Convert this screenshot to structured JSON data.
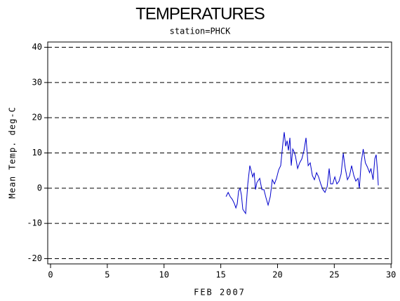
{
  "chart_data": {
    "type": "line",
    "title": "TEMPERATURES",
    "subtitle": "station=PHCK",
    "x_label": "FEB 2007",
    "y_label": "Mean Temp. deg-C",
    "xlim": [
      -0.25,
      30.05
    ],
    "xticks": [
      0,
      5,
      10,
      15,
      20,
      25,
      30
    ],
    "ylim": [
      -21.5,
      41.5
    ],
    "yticks": [
      -20,
      -10,
      0,
      10,
      20,
      30,
      40
    ],
    "grid": true,
    "series": [
      {
        "color": "#0000cc",
        "x": [
          15.46,
          15.65,
          15.83,
          16.02,
          16.2,
          16.33,
          16.45,
          16.57,
          16.7,
          16.82,
          16.94,
          17.19,
          17.38,
          17.56,
          17.69,
          17.81,
          17.94,
          18.06,
          18.18,
          18.43,
          18.62,
          18.8,
          18.99,
          19.17,
          19.36,
          19.54,
          19.73,
          19.91,
          20.1,
          20.28,
          20.47,
          20.59,
          20.72,
          20.84,
          20.96,
          21.09,
          21.21,
          21.34,
          21.46,
          21.58,
          21.77,
          21.95,
          22.14,
          22.33,
          22.51,
          22.7,
          22.88,
          23.07,
          23.25,
          23.44,
          23.62,
          23.81,
          24.0,
          24.18,
          24.37,
          24.55,
          24.68,
          24.86,
          25.05,
          25.23,
          25.42,
          25.6,
          25.79,
          25.97,
          26.16,
          26.35,
          26.53,
          26.72,
          26.9,
          27.09,
          27.21,
          27.37,
          27.55,
          27.74,
          27.92,
          28.11,
          28.23,
          28.42,
          28.57,
          28.69,
          28.82,
          28.88
        ],
        "values": [
          -2.4,
          -1.2,
          -2.4,
          -3.2,
          -4.4,
          -5.6,
          -4.4,
          -0.8,
          0,
          -2,
          -6,
          -7.2,
          1.2,
          6.4,
          4.8,
          3.2,
          4.4,
          -0.4,
          1.6,
          2.8,
          -0.4,
          -0.4,
          -2.8,
          -4.8,
          -2.4,
          2.4,
          1.2,
          2.8,
          5.2,
          6.4,
          12.7,
          15.9,
          11.9,
          13.5,
          10.7,
          14.3,
          6.4,
          11.1,
          10.3,
          9.1,
          5.6,
          7.2,
          8.3,
          10.7,
          14.3,
          6.4,
          7.2,
          3.6,
          2.4,
          4.4,
          3.2,
          1.2,
          -0.4,
          -1.2,
          0.4,
          5.6,
          1.2,
          1.2,
          3.2,
          1.2,
          2.0,
          4.0,
          9.9,
          5.6,
          2.4,
          3.6,
          6.4,
          3.6,
          2.0,
          2.8,
          0,
          7.2,
          11.1,
          7.2,
          6.0,
          4.4,
          5.6,
          2.4,
          8.3,
          9.5,
          4.4,
          0.8
        ]
      }
    ]
  }
}
